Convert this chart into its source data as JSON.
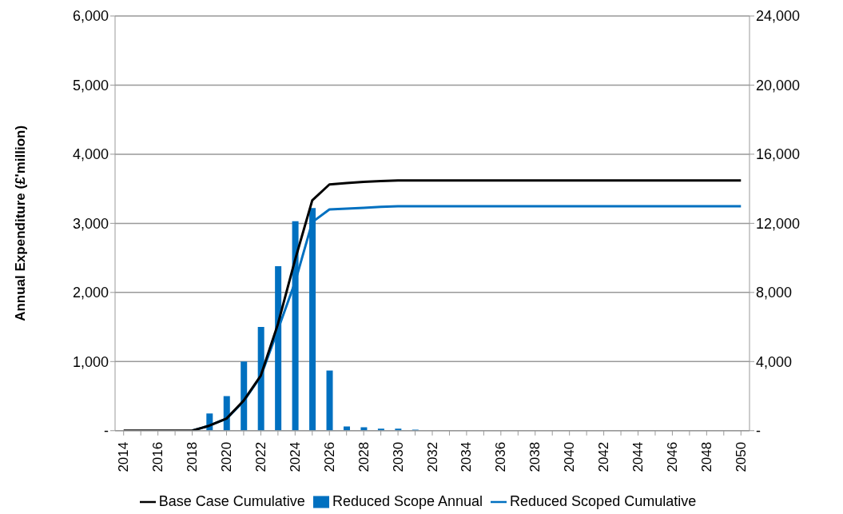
{
  "chart_data": {
    "type": "bar",
    "ylabel": "Annual Expenditure (£'million)",
    "categories": [
      "2014",
      null,
      "2016",
      null,
      "2018",
      null,
      "2020",
      null,
      "2022",
      null,
      "2024",
      null,
      "2026",
      null,
      "2028",
      null,
      "2030",
      null,
      "2032",
      null,
      "2034",
      null,
      "2036",
      null,
      "2038",
      null,
      "2040",
      null,
      "2042",
      null,
      "2044",
      null,
      "2046",
      null,
      "2048",
      null,
      "2050"
    ],
    "series": [
      {
        "name": "Reduced Scope Annual",
        "color": "#0070c0",
        "values": [
          0,
          0,
          0,
          0,
          0,
          250,
          500,
          1000,
          1500,
          2380,
          3030,
          3220,
          870,
          60,
          50,
          30,
          30,
          15,
          0,
          0,
          0,
          0,
          0,
          0,
          0,
          0,
          0,
          0,
          0,
          0,
          0,
          0,
          0,
          0,
          0,
          0,
          0
        ]
      },
      {
        "name": "Reduced Scoped Cumulative",
        "type": "line",
        "axis": "y2",
        "color": "#0070c0",
        "values": [
          null,
          null,
          null,
          null,
          0,
          290,
          700,
          1700,
          3150,
          5850,
          8600,
          12070,
          12800,
          12850,
          12900,
          12950,
          12990,
          12990,
          12990,
          12990,
          12990,
          12990,
          12990,
          12990,
          12990,
          12990,
          12990,
          12990,
          12990,
          12990,
          12990,
          12990,
          12990,
          12990,
          12990,
          12990,
          12990
        ]
      },
      {
        "name": "Base Case Cumulative",
        "type": "line",
        "axis": "y2",
        "color": "#000000",
        "values": [
          0,
          0,
          0,
          0,
          0,
          290,
          700,
          1740,
          3190,
          6180,
          9900,
          13330,
          14250,
          14330,
          14400,
          14450,
          14480,
          14480,
          14480,
          14480,
          14480,
          14480,
          14480,
          14480,
          14480,
          14480,
          14480,
          14480,
          14480,
          14480,
          14480,
          14480,
          14480,
          14480,
          14480,
          14480,
          14480
        ]
      }
    ],
    "ylim": [
      0,
      6000
    ],
    "yticks": [
      {
        "value": 0,
        "label": "-"
      },
      {
        "value": 1000,
        "label": "1,000"
      },
      {
        "value": 2000,
        "label": "2,000"
      },
      {
        "value": 3000,
        "label": "3,000"
      },
      {
        "value": 4000,
        "label": "4,000"
      },
      {
        "value": 5000,
        "label": "5,000"
      },
      {
        "value": 6000,
        "label": "6,000"
      }
    ],
    "y2lim": [
      0,
      24000
    ],
    "y2ticks": [
      {
        "value": 0,
        "label": "-"
      },
      {
        "value": 4000,
        "label": "4,000"
      },
      {
        "value": 8000,
        "label": "8,000"
      },
      {
        "value": 12000,
        "label": "12,000"
      },
      {
        "value": 16000,
        "label": "16,000"
      },
      {
        "value": 20000,
        "label": "20,000"
      },
      {
        "value": 24000,
        "label": "24,000"
      }
    ],
    "grid": "y",
    "legend": "bottom",
    "line_style": "solid",
    "marker": "none"
  }
}
